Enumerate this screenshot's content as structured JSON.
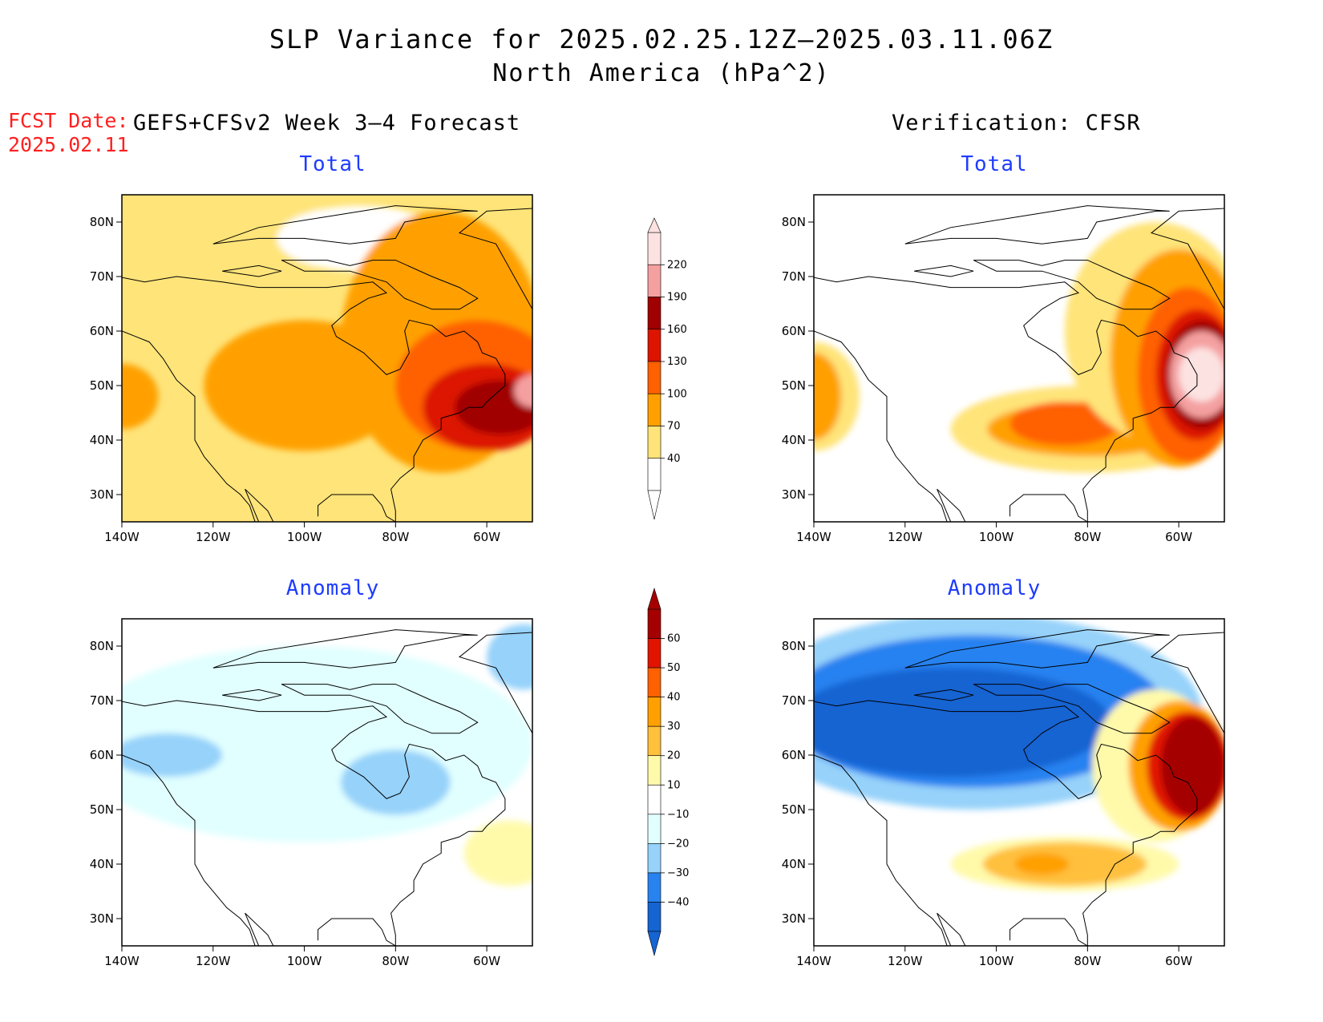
{
  "title": "SLP Variance for 2025.02.25.12Z–2025.03.11.06Z",
  "subtitle": "North America (hPa^2)",
  "fcst_label": "FCST Date:",
  "fcst_date": "2025.02.11",
  "left_header": "GEFS+CFSv2 Week 3–4 Forecast",
  "right_header": "Verification: CFSR",
  "colors": {
    "total_scale": [
      "#ffffff",
      "#ffe479",
      "#ffa000",
      "#ff6000",
      "#dc1400",
      "#a00000",
      "#f4a0a0",
      "#fde2e2"
    ],
    "anomaly_scale": [
      "#1464d2",
      "#2882f0",
      "#96d2fa",
      "#e1ffff",
      "#ffffff",
      "#fffaaa",
      "#ffc03c",
      "#ffa000",
      "#ff6000",
      "#e11400",
      "#a50000"
    ]
  },
  "chart_data": [
    {
      "type": "contour-map",
      "name": "forecast-total",
      "title": "Total",
      "x_ticks": [
        "140W",
        "120W",
        "100W",
        "80W",
        "60W"
      ],
      "y_ticks": [
        "80N",
        "70N",
        "60N",
        "50N",
        "40N",
        "30N"
      ],
      "xlim_deg": [
        -140,
        -50
      ],
      "ylim_deg": [
        25,
        85
      ],
      "blobs": [
        {
          "lon": -155,
          "lat": 78,
          "rx": 60,
          "ry": 20,
          "level": 1
        },
        {
          "lon": -88,
          "lat": 77,
          "rx": 18,
          "ry": 6,
          "level": 0
        },
        {
          "lon": -100,
          "lat": 50,
          "rx": 22,
          "ry": 12,
          "level": 2
        },
        {
          "lon": -140,
          "lat": 48,
          "rx": 8,
          "ry": 6,
          "level": 2
        },
        {
          "lon": -70,
          "lat": 58,
          "rx": 22,
          "ry": 24,
          "level": 2
        },
        {
          "lon": -62,
          "lat": 50,
          "rx": 18,
          "ry": 12,
          "level": 3
        },
        {
          "lon": -60,
          "lat": 46,
          "rx": 14,
          "ry": 8,
          "level": 4
        },
        {
          "lon": -57,
          "lat": 46,
          "rx": 10,
          "ry": 5,
          "level": 5
        },
        {
          "lon": -50,
          "lat": 49,
          "rx": 4,
          "ry": 3,
          "level": 6
        }
      ]
    },
    {
      "type": "contour-map",
      "name": "verification-total",
      "title": "Total",
      "x_ticks": [
        "140W",
        "120W",
        "100W",
        "80W",
        "60W"
      ],
      "y_ticks": [
        "80N",
        "70N",
        "60N",
        "50N",
        "40N",
        "30N"
      ],
      "xlim_deg": [
        -140,
        -50
      ],
      "ylim_deg": [
        25,
        85
      ],
      "blobs": [
        {
          "lon": -140,
          "lat": 48,
          "rx": 10,
          "ry": 10,
          "level": 1
        },
        {
          "lon": -140,
          "lat": 48,
          "rx": 6,
          "ry": 8,
          "level": 2
        },
        {
          "lon": -80,
          "lat": 42,
          "rx": 30,
          "ry": 8,
          "level": 1
        },
        {
          "lon": -80,
          "lat": 42,
          "rx": 22,
          "ry": 5,
          "level": 2
        },
        {
          "lon": -85,
          "lat": 43,
          "rx": 12,
          "ry": 4,
          "level": 3
        },
        {
          "lon": -65,
          "lat": 60,
          "rx": 20,
          "ry": 20,
          "level": 1
        },
        {
          "lon": -60,
          "lat": 55,
          "rx": 15,
          "ry": 20,
          "level": 2
        },
        {
          "lon": -58,
          "lat": 52,
          "rx": 11,
          "ry": 16,
          "level": 3
        },
        {
          "lon": -56,
          "lat": 52,
          "rx": 9,
          "ry": 12,
          "level": 4
        },
        {
          "lon": -55,
          "lat": 52,
          "rx": 8,
          "ry": 10,
          "level": 5
        },
        {
          "lon": -55,
          "lat": 52,
          "rx": 7,
          "ry": 8,
          "level": 6
        },
        {
          "lon": -55,
          "lat": 52,
          "rx": 5,
          "ry": 5,
          "level": 7
        }
      ]
    },
    {
      "type": "contour-map",
      "name": "forecast-anomaly",
      "title": "Anomaly",
      "x_ticks": [
        "140W",
        "120W",
        "100W",
        "80W",
        "60W"
      ],
      "y_ticks": [
        "80N",
        "70N",
        "60N",
        "50N",
        "40N",
        "30N"
      ],
      "xlim_deg": [
        -140,
        -50
      ],
      "ylim_deg": [
        25,
        85
      ],
      "blobs": [
        {
          "lon": -100,
          "lat": 62,
          "rx": 50,
          "ry": 18,
          "level": 3
        },
        {
          "lon": -130,
          "lat": 60,
          "rx": 12,
          "ry": 4,
          "level": 2
        },
        {
          "lon": -80,
          "lat": 55,
          "rx": 12,
          "ry": 6,
          "level": 2
        },
        {
          "lon": -52,
          "lat": 78,
          "rx": 8,
          "ry": 6,
          "level": 2
        },
        {
          "lon": -55,
          "lat": 42,
          "rx": 10,
          "ry": 6,
          "level": 5
        }
      ]
    },
    {
      "type": "contour-map",
      "name": "verification-anomaly",
      "title": "Anomaly",
      "x_ticks": [
        "140W",
        "120W",
        "100W",
        "80W",
        "60W"
      ],
      "y_ticks": [
        "80N",
        "70N",
        "60N",
        "50N",
        "40N",
        "30N"
      ],
      "xlim_deg": [
        -140,
        -50
      ],
      "ylim_deg": [
        25,
        85
      ],
      "blobs": [
        {
          "lon": -105,
          "lat": 68,
          "rx": 50,
          "ry": 18,
          "level": 2
        },
        {
          "lon": -105,
          "lat": 68,
          "rx": 42,
          "ry": 14,
          "level": 1
        },
        {
          "lon": -110,
          "lat": 66,
          "rx": 35,
          "ry": 10,
          "level": 0
        },
        {
          "lon": -85,
          "lat": 40,
          "rx": 25,
          "ry": 5,
          "level": 5
        },
        {
          "lon": -85,
          "lat": 40,
          "rx": 18,
          "ry": 4,
          "level": 6
        },
        {
          "lon": -90,
          "lat": 40,
          "rx": 6,
          "ry": 2,
          "level": 7
        },
        {
          "lon": -65,
          "lat": 58,
          "rx": 14,
          "ry": 14,
          "level": 5
        },
        {
          "lon": -60,
          "lat": 58,
          "rx": 11,
          "ry": 12,
          "level": 7
        },
        {
          "lon": -58,
          "lat": 58,
          "rx": 9,
          "ry": 10,
          "level": 9
        },
        {
          "lon": -57,
          "lat": 58,
          "rx": 7,
          "ry": 9,
          "level": 10
        }
      ]
    }
  ],
  "colorbar_total": {
    "labels": [
      "220",
      "190",
      "160",
      "130",
      "100",
      "70",
      "40"
    ]
  },
  "colorbar_anomaly": {
    "labels": [
      "60",
      "50",
      "40",
      "30",
      "20",
      "10",
      "−10",
      "−20",
      "−30",
      "−40"
    ]
  }
}
